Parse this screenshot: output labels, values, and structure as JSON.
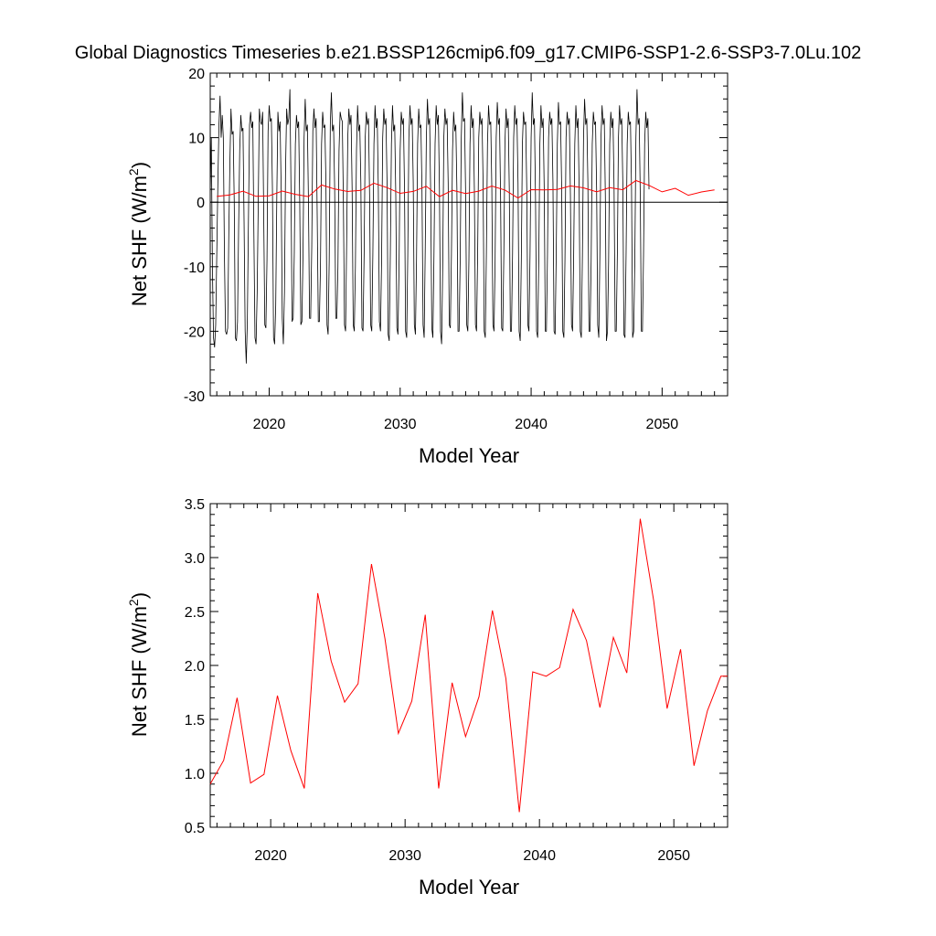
{
  "title": "Global Diagnostics Timeseries b.e21.BSSP126cmip6.f09_g17.CMIP6-SSP1-2.6-SSP3-7.0Lu.102",
  "colors": {
    "monthly": "#000000",
    "annual": "#ff0000",
    "axis": "#000000"
  },
  "chart_data": [
    {
      "type": "line",
      "ylabel": "Net SHF (W/m",
      "ylabel_sup": "2",
      "ylabel_close": ")",
      "xlabel": "Model Year",
      "xlim": [
        2015.5,
        2055.0
      ],
      "ylim": [
        -30,
        20
      ],
      "xticks": [
        2020,
        2030,
        2040,
        2050
      ],
      "xtick_labels": [
        "2020",
        "2030",
        "2040",
        "2050"
      ],
      "yticks": [
        -30,
        -20,
        -10,
        0,
        10,
        20
      ],
      "ytick_labels": [
        "-30",
        "-20",
        "-10",
        "0",
        "10",
        "20"
      ],
      "zero_line": 0,
      "monthly_series": {
        "x_start": 2015.5,
        "step": 0.0833333,
        "values": [
          1.5,
          10.0,
          -10.0,
          -21.0,
          -22.5,
          -19.0,
          -8.0,
          3.0,
          12.0,
          16.5,
          10.0,
          13.5,
          10.0,
          -8.0,
          -20.0,
          -20.5,
          -19.5,
          -5.0,
          6.0,
          14.5,
          10.5,
          11.0,
          0.0,
          -21.0,
          -21.5,
          -18.5,
          -4.0,
          8.0,
          13.5,
          11.0,
          11.5,
          -3.0,
          -20.0,
          -25.0,
          -18.5,
          -3.0,
          12.0,
          14.0,
          11.5,
          12.5,
          -5.0,
          -21.0,
          -22.0,
          -14.0,
          0.0,
          14.5,
          12.5,
          12.0,
          14.0,
          -2.0,
          -19.0,
          -19.5,
          -9.0,
          11.0,
          15.0,
          12.5,
          13.0,
          2.0,
          -21.0,
          -22.0,
          -16.0,
          1.0,
          14.0,
          11.0,
          12.5,
          2.0,
          -18.0,
          -22.0,
          -14.0,
          5.0,
          14.5,
          12.0,
          13.0,
          17.5,
          2.0,
          -18.5,
          -18.0,
          -8.0,
          9.0,
          13.5,
          11.5,
          12.5,
          0.0,
          -19.0,
          -18.5,
          -8.0,
          10.0,
          16.0,
          11.0,
          12.0,
          0.0,
          -18.0,
          -18.0,
          -7.0,
          11.0,
          14.5,
          11.5,
          13.0,
          -2.0,
          -18.5,
          -18.5,
          -10.0,
          9.0,
          14.0,
          11.5,
          12.0,
          3.0,
          -19.0,
          -20.5,
          -9.0,
          12.0,
          17.0,
          11.0,
          12.0,
          2.0,
          -18.0,
          -18.0,
          -10.0,
          8.0,
          14.0,
          13.0,
          12.5,
          0.0,
          -19.0,
          -20.0,
          -6.0,
          10.0,
          14.5,
          12.0,
          13.5,
          2.0,
          -19.0,
          -20.0,
          -10.0,
          8.0,
          15.0,
          11.0,
          12.0,
          3.0,
          -19.5,
          -20.0,
          -8.0,
          10.0,
          14.0,
          12.0,
          13.0,
          1.0,
          -19.0,
          -20.0,
          -8.0,
          9.0,
          15.0,
          11.5,
          13.0,
          2.0,
          -18.5,
          -20.0,
          -9.0,
          10.0,
          14.5,
          12.0,
          13.0,
          3.0,
          -20.5,
          -21.5,
          -8.0,
          9.0,
          15.0,
          11.0,
          12.0,
          1.0,
          -19.5,
          -20.5,
          -10.0,
          8.0,
          14.0,
          12.0,
          13.0,
          2.0,
          -20.0,
          -21.0,
          -8.0,
          10.0,
          15.0,
          12.0,
          13.0,
          3.0,
          -19.0,
          -20.5,
          -9.0,
          9.0,
          14.5,
          11.5,
          12.0,
          2.0,
          -19.0,
          -21.0,
          -7.0,
          10.0,
          16.0,
          12.0,
          13.0,
          1.0,
          -19.5,
          -21.0,
          -8.0,
          9.0,
          15.0,
          12.0,
          13.5,
          2.0,
          -20.0,
          -22.0,
          -10.0,
          10.0,
          14.5,
          12.0,
          13.0,
          3.0,
          -19.0,
          -19.5,
          -8.0,
          8.0,
          14.0,
          11.0,
          12.0,
          2.0,
          -20.0,
          -20.0,
          -9.0,
          10.0,
          17.0,
          12.5,
          13.0,
          1.0,
          -19.0,
          -20.0,
          -9.0,
          9.0,
          15.0,
          11.5,
          13.0,
          2.0,
          -19.0,
          -20.0,
          -8.0,
          10.0,
          14.0,
          12.0,
          13.0,
          3.0,
          -20.0,
          -21.0,
          -8.0,
          9.0,
          15.0,
          12.0,
          12.5,
          2.0,
          -19.0,
          -20.0,
          -9.0,
          10.0,
          15.5,
          12.0,
          13.0,
          1.0,
          -19.5,
          -20.0,
          -8.0,
          9.0,
          14.5,
          11.5,
          13.0,
          2.0,
          -20.0,
          -20.0,
          -8.0,
          10.0,
          15.0,
          12.0,
          13.0,
          3.0,
          -20.0,
          -21.5,
          -9.0,
          9.0,
          14.0,
          12.0,
          12.5,
          2.0,
          -19.0,
          -20.0,
          -8.0,
          10.0,
          17.0,
          12.0,
          13.0,
          1.0,
          -20.0,
          -21.0,
          -9.0,
          9.0,
          15.0,
          11.5,
          13.0,
          2.0,
          -20.0,
          -20.0,
          -8.0,
          10.0,
          14.0,
          12.0,
          13.0,
          3.0,
          -20.0,
          -20.5,
          -8.0,
          9.0,
          15.5,
          12.0,
          12.5,
          2.0,
          -20.0,
          -21.0,
          -9.0,
          10.0,
          14.0,
          12.0,
          13.0,
          1.0,
          -19.0,
          -20.0,
          -8.0,
          9.0,
          15.0,
          11.5,
          13.0,
          2.0,
          -20.0,
          -21.0,
          -8.0,
          10.0,
          16.0,
          12.0,
          13.0,
          3.0,
          -20.0,
          -20.0,
          -9.0,
          9.0,
          14.0,
          12.0,
          12.5,
          2.0,
          -19.0,
          -21.0,
          -8.0,
          10.0,
          15.0,
          12.0,
          13.0,
          1.0,
          -21.5,
          -20.0,
          -9.0,
          9.0,
          14.0,
          11.5,
          13.0,
          2.0,
          -20.0,
          -20.0,
          -8.0,
          10.0,
          15.0,
          12.0,
          13.0,
          3.0,
          -20.5,
          -21.0,
          -8.0,
          9.0,
          14.0,
          12.0,
          12.5,
          2.0,
          -21.0,
          -20.0,
          -9.0,
          10.0,
          17.5,
          12.0,
          13.0,
          1.0,
          -20.0,
          -20.0,
          -8.0,
          9.0,
          14.0,
          11.5,
          13.0,
          2.0
        ]
      },
      "annual_series": {
        "x": [
          2016.0,
          2017.0,
          2018.0,
          2019.0,
          2020.0,
          2021.0,
          2022.0,
          2023.0,
          2024.0,
          2025.0,
          2026.0,
          2027.0,
          2028.0,
          2029.0,
          2030.0,
          2031.0,
          2032.0,
          2033.0,
          2034.0,
          2035.0,
          2036.0,
          2037.0,
          2038.0,
          2039.0,
          2040.0,
          2041.0,
          2042.0,
          2043.0,
          2044.0,
          2045.0,
          2046.0,
          2047.0,
          2048.0,
          2049.0,
          2050.0,
          2051.0,
          2052.0,
          2053.0,
          2054.0
        ],
        "values": [
          0.9,
          1.12,
          1.7,
          0.91,
          0.99,
          1.72,
          1.21,
          0.86,
          2.67,
          2.04,
          1.66,
          1.83,
          2.94,
          2.25,
          1.37,
          1.67,
          2.47,
          0.86,
          1.84,
          1.34,
          1.71,
          2.51,
          1.88,
          0.64,
          1.94,
          1.9,
          1.98,
          2.52,
          2.23,
          1.61,
          2.26,
          1.93,
          3.36,
          2.6,
          1.6,
          2.15,
          1.07,
          1.58,
          1.9
        ]
      }
    },
    {
      "type": "line",
      "ylabel": "Net SHF (W/m",
      "ylabel_sup": "2",
      "ylabel_close": ")",
      "xlabel": "Model Year",
      "xlim": [
        2015.5,
        2054.0
      ],
      "ylim": [
        0.5,
        3.5
      ],
      "xticks": [
        2020,
        2030,
        2040,
        2050
      ],
      "xtick_labels": [
        "2020",
        "2030",
        "2040",
        "2050"
      ],
      "yticks": [
        0.5,
        1.0,
        1.5,
        2.0,
        2.5,
        3.0,
        3.5
      ],
      "ytick_labels": [
        "0.5",
        "1.0",
        "1.5",
        "2.0",
        "2.5",
        "3.0",
        "3.5"
      ],
      "annual_series": {
        "x": [
          2015.5,
          2016.5,
          2017.5,
          2018.5,
          2019.5,
          2020.5,
          2021.5,
          2022.5,
          2023.5,
          2024.5,
          2025.5,
          2026.5,
          2027.5,
          2028.5,
          2029.5,
          2030.5,
          2031.5,
          2032.5,
          2033.5,
          2034.5,
          2035.5,
          2036.5,
          2037.5,
          2038.5,
          2039.5,
          2040.5,
          2041.5,
          2042.5,
          2043.5,
          2044.5,
          2045.5,
          2046.5,
          2047.5,
          2048.5,
          2049.5,
          2050.5,
          2051.5,
          2052.5,
          2053.5,
          2054.0
        ],
        "values": [
          0.9,
          1.12,
          1.7,
          0.91,
          0.99,
          1.72,
          1.21,
          0.86,
          2.67,
          2.04,
          1.66,
          1.83,
          2.94,
          2.25,
          1.37,
          1.67,
          2.47,
          0.86,
          1.84,
          1.34,
          1.71,
          2.51,
          1.88,
          0.64,
          1.94,
          1.9,
          1.98,
          2.52,
          2.23,
          1.61,
          2.26,
          1.93,
          3.36,
          2.6,
          1.6,
          2.15,
          1.07,
          1.58,
          1.9,
          1.9
        ]
      }
    }
  ]
}
